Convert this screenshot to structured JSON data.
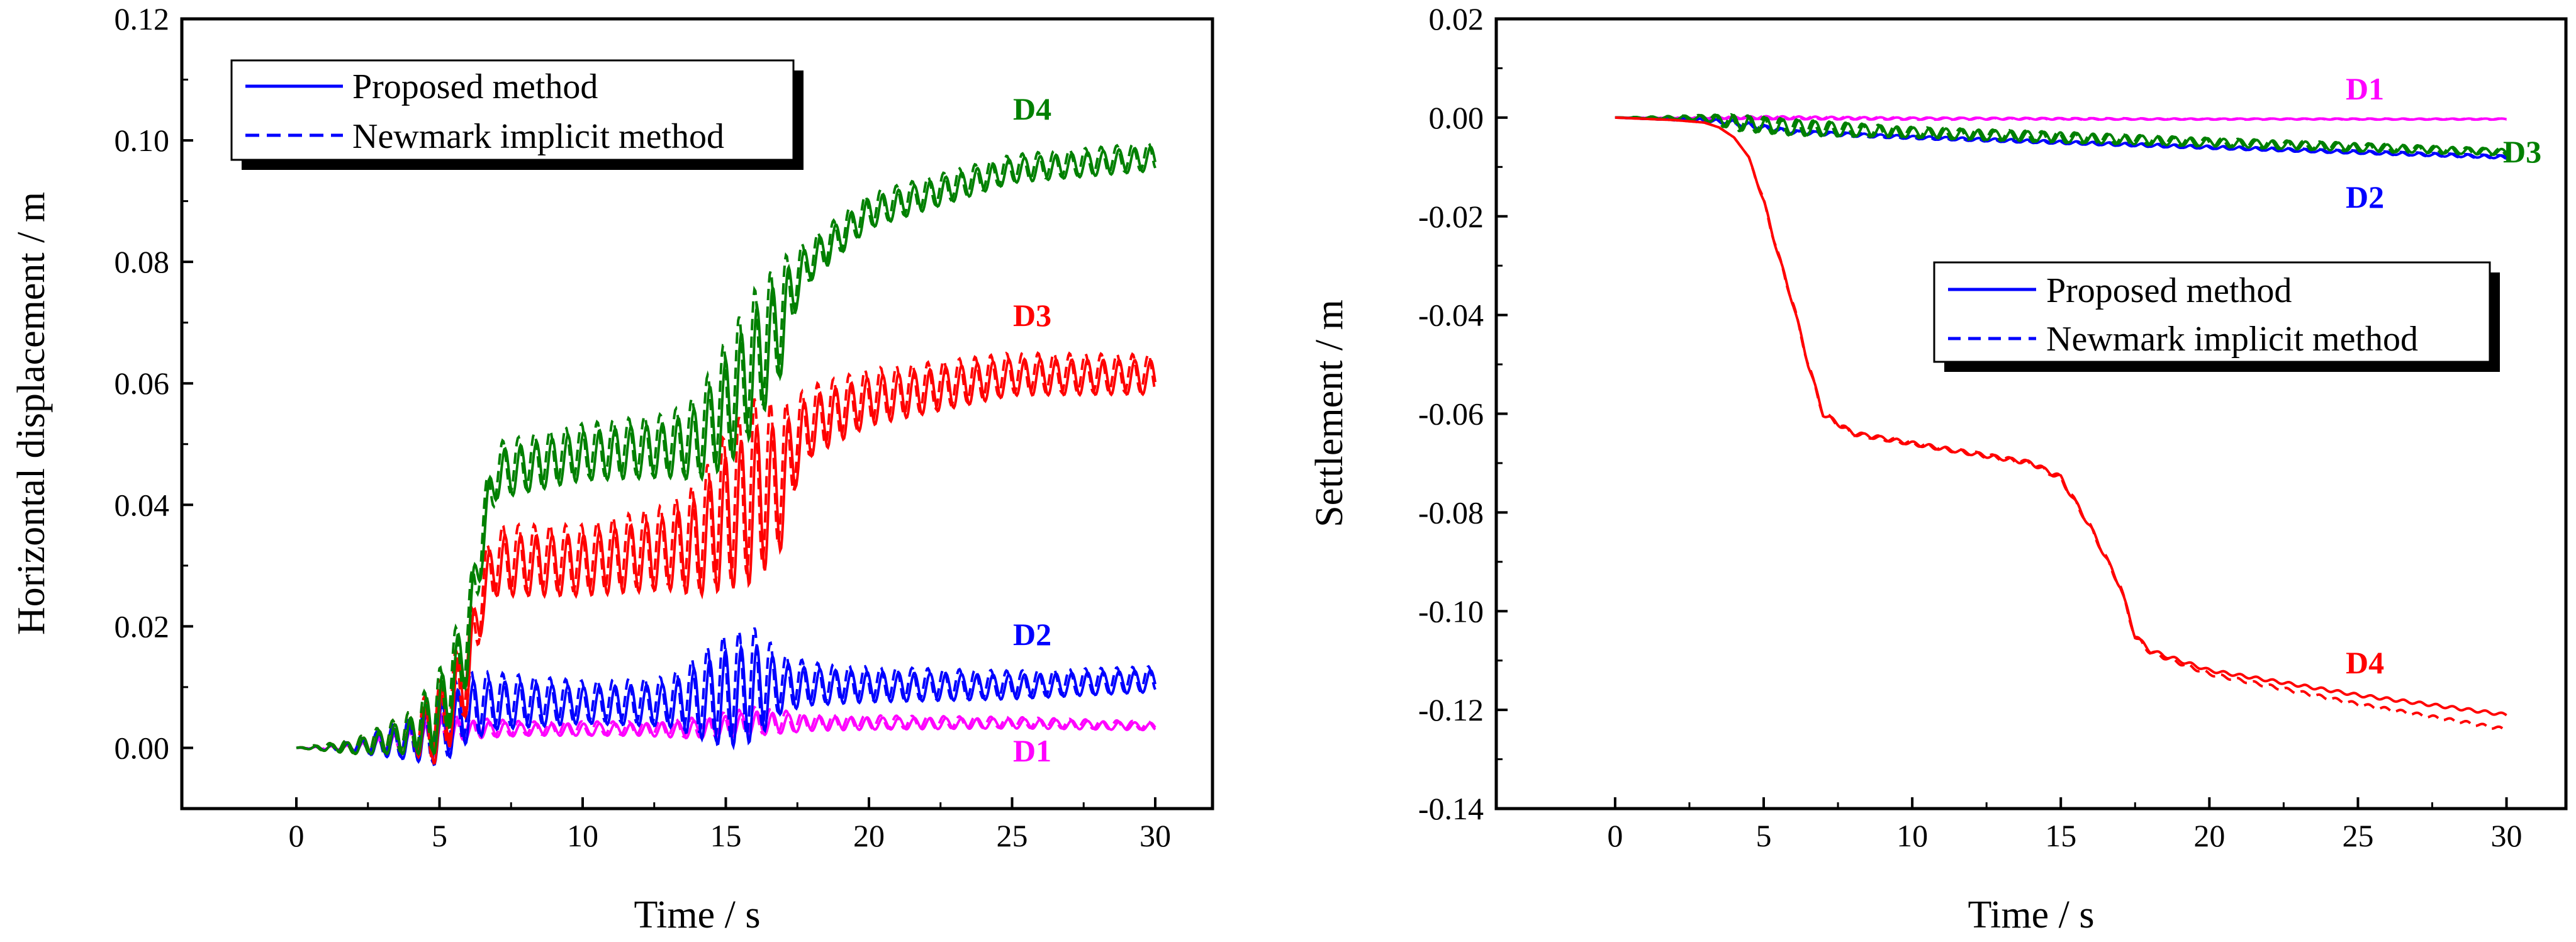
{
  "chart_data": [
    {
      "type": "line",
      "title": "",
      "xlabel": "Time / s",
      "ylabel": "Horizontal displacement / m",
      "xlim": [
        -4,
        32
      ],
      "ylim": [
        -0.01,
        0.12
      ],
      "xticks": [
        "0",
        "5",
        "10",
        "15",
        "20",
        "25",
        "30"
      ],
      "yticks": [
        "0.00",
        "0.02",
        "0.04",
        "0.06",
        "0.08",
        "0.10",
        "0.12"
      ],
      "legend": {
        "position": "top-left",
        "entries": [
          {
            "label": "Proposed method",
            "style": "solid",
            "color": "#0000ff"
          },
          {
            "label": "Newmark implicit method",
            "style": "dashed",
            "color": "#0000ff"
          }
        ]
      },
      "series": [
        {
          "name": "D1",
          "color": "#ff00ff",
          "x": [
            0,
            2,
            4,
            5,
            6,
            8,
            10,
            12,
            14,
            16,
            18,
            20,
            25,
            30
          ],
          "values": [
            0,
            0,
            0.001,
            0.002,
            0.003,
            0.003,
            0.003,
            0.003,
            0.003,
            0.004,
            0.004,
            0.004,
            0.004,
            0.0035
          ],
          "amplitude": [
            0,
            0.0005,
            0.002,
            0.003,
            0.0015,
            0.001,
            0.001,
            0.001,
            0.0015,
            0.002,
            0.0012,
            0.001,
            0.0008,
            0.0006
          ]
        },
        {
          "name": "D2",
          "color": "#0000ff",
          "x": [
            0,
            2,
            4,
            5,
            6,
            7,
            10,
            13,
            15,
            16,
            17,
            18,
            20,
            25,
            30
          ],
          "values": [
            0,
            0,
            0.001,
            0.002,
            0.006,
            0.007,
            0.007,
            0.007,
            0.008,
            0.009,
            0.01,
            0.01,
            0.01,
            0.01,
            0.011
          ],
          "amplitude": [
            0,
            0.0008,
            0.003,
            0.005,
            0.005,
            0.004,
            0.003,
            0.0035,
            0.008,
            0.008,
            0.004,
            0.003,
            0.0025,
            0.002,
            0.0018
          ]
        },
        {
          "name": "D3",
          "color": "#ff0000",
          "x": [
            0,
            2,
            4,
            5,
            6,
            6.5,
            7,
            10,
            13,
            14,
            15,
            16,
            17,
            17.5,
            18,
            20,
            25,
            30
          ],
          "values": [
            0,
            0,
            0.002,
            0.003,
            0.012,
            0.025,
            0.03,
            0.03,
            0.032,
            0.033,
            0.037,
            0.04,
            0.043,
            0.05,
            0.053,
            0.057,
            0.061,
            0.061
          ],
          "amplitude": [
            0,
            0.001,
            0.003,
            0.006,
            0.006,
            0.005,
            0.005,
            0.005,
            0.006,
            0.008,
            0.011,
            0.013,
            0.01,
            0.006,
            0.005,
            0.004,
            0.003,
            0.0028
          ]
        },
        {
          "name": "D4",
          "color": "#008000",
          "x": [
            0,
            2,
            4,
            5,
            6,
            6.5,
            7,
            10,
            13,
            14,
            15,
            16,
            17,
            17.5,
            18,
            20,
            25,
            30
          ],
          "values": [
            0,
            0,
            0.002,
            0.005,
            0.017,
            0.035,
            0.045,
            0.048,
            0.049,
            0.05,
            0.055,
            0.062,
            0.07,
            0.077,
            0.08,
            0.088,
            0.095,
            0.097
          ],
          "amplitude": [
            0,
            0.001,
            0.003,
            0.006,
            0.006,
            0.005,
            0.004,
            0.004,
            0.0045,
            0.006,
            0.009,
            0.01,
            0.008,
            0.004,
            0.003,
            0.0025,
            0.002,
            0.002
          ]
        }
      ]
    },
    {
      "type": "line",
      "title": "",
      "xlabel": "Time / s",
      "ylabel": "Settlement / m",
      "xlim": [
        -4,
        32
      ],
      "ylim": [
        -0.14,
        0.02
      ],
      "xticks": [
        "0",
        "5",
        "10",
        "15",
        "20",
        "25",
        "30"
      ],
      "yticks": [
        "-0.14",
        "-0.12",
        "-0.10",
        "-0.08",
        "-0.06",
        "-0.04",
        "-0.02",
        "0.00",
        "0.02"
      ],
      "legend": {
        "position": "center-right",
        "entries": [
          {
            "label": "Proposed method",
            "style": "solid",
            "color": "#0000ff"
          },
          {
            "label": "Newmark implicit method",
            "style": "dashed",
            "color": "#0000ff"
          }
        ]
      },
      "series": [
        {
          "name": "D1",
          "color": "#ff00ff",
          "x": [
            0,
            3,
            5,
            10,
            20,
            30
          ],
          "values": [
            0,
            0,
            0,
            -0.0002,
            -0.0003,
            -0.0003
          ],
          "amplitude": [
            0,
            0.0002,
            0.0003,
            0.0002,
            0.0001,
            0.0001
          ]
        },
        {
          "name": "D2",
          "color": "#0000ff",
          "x": [
            0,
            3,
            4,
            6,
            10,
            15,
            20,
            25,
            30
          ],
          "values": [
            0,
            -0.0005,
            -0.001,
            -0.003,
            -0.004,
            -0.005,
            -0.006,
            -0.007,
            -0.008
          ],
          "amplitude": [
            0,
            0.0003,
            0.0005,
            0.0004,
            0.0003,
            0.0003,
            0.0003,
            0.0003,
            0.0003
          ]
        },
        {
          "name": "D3",
          "color": "#008000",
          "x": [
            0,
            3,
            4,
            6,
            10,
            15,
            20,
            25,
            30
          ],
          "values": [
            0,
            0,
            -0.001,
            -0.002,
            -0.003,
            -0.004,
            -0.005,
            -0.006,
            -0.007
          ],
          "amplitude": [
            0,
            0.0005,
            0.0015,
            0.0015,
            0.001,
            0.001,
            0.0008,
            0.0008,
            0.0006
          ]
        },
        {
          "name": "D4",
          "color": "#ff0000",
          "x": [
            0,
            2,
            3,
            3.5,
            4,
            4.5,
            5,
            5.5,
            6,
            6.5,
            7,
            8,
            10,
            12,
            14,
            15,
            16,
            17,
            17.5,
            18,
            20,
            25,
            30
          ],
          "values": [
            0,
            -0.0005,
            -0.001,
            -0.002,
            -0.004,
            -0.008,
            -0.017,
            -0.028,
            -0.038,
            -0.05,
            -0.06,
            -0.064,
            -0.066,
            -0.068,
            -0.07,
            -0.073,
            -0.083,
            -0.095,
            -0.105,
            -0.108,
            -0.112,
            -0.117,
            -0.121
          ],
          "amplitude": [
            0,
            0,
            0,
            0,
            0,
            0,
            0.0005,
            0.0005,
            0.0005,
            0.0005,
            0.0005,
            0.0004,
            0.0004,
            0.0004,
            0.0004,
            0.0005,
            0.0005,
            0.0005,
            0.0005,
            0.0004,
            0.0003,
            0.0003,
            0.0003
          ]
        }
      ],
      "newmark_end_values": {
        "D4": -0.124
      }
    }
  ]
}
